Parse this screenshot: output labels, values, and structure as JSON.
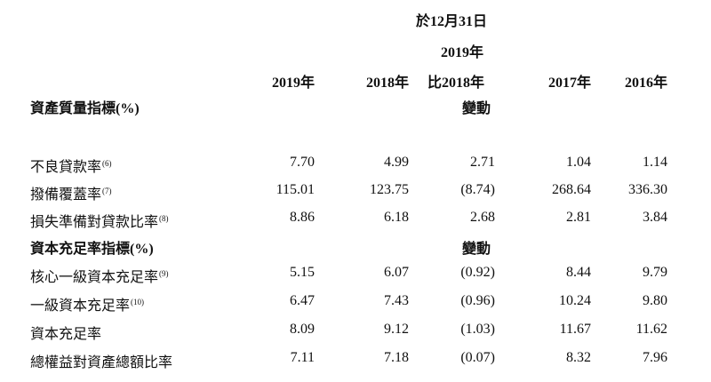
{
  "header": {
    "date_line": "於12月31日",
    "change_year": "2019年",
    "change_compare": "比2018年",
    "columns": [
      "2019年",
      "2018年",
      "",
      "2017年",
      "2016年"
    ]
  },
  "sections": [
    {
      "title": "資產質量指標(%)",
      "change_label": "變動",
      "rows": [
        {
          "label": "不良貸款率",
          "note": "(6)",
          "values": [
            "7.70",
            "4.99",
            "2.71",
            "1.04",
            "1.14"
          ]
        },
        {
          "label": "撥備覆蓋率",
          "note": "(7)",
          "values": [
            "115.01",
            "123.75",
            "(8.74)",
            "268.64",
            "336.30"
          ]
        },
        {
          "label": "損失準備對貸款比率",
          "note": "(8)",
          "values": [
            "8.86",
            "6.18",
            "2.68",
            "2.81",
            "3.84"
          ]
        }
      ]
    },
    {
      "title": "資本充足率指標(%)",
      "change_label": "變動",
      "rows": [
        {
          "label": "核心一級資本充足率",
          "note": "(9)",
          "values": [
            "5.15",
            "6.07",
            "(0.92)",
            "8.44",
            "9.79"
          ]
        },
        {
          "label": "一級資本充足率",
          "note": "(10)",
          "values": [
            "6.47",
            "7.43",
            "(0.96)",
            "10.24",
            "9.80"
          ]
        },
        {
          "label": "資本充足率",
          "note": "",
          "values": [
            "8.09",
            "9.12",
            "(1.03)",
            "11.67",
            "11.62"
          ]
        },
        {
          "label": "總權益對資產總額比率",
          "note": "",
          "values": [
            "7.11",
            "7.18",
            "(0.07)",
            "8.32",
            "7.96"
          ]
        }
      ]
    }
  ]
}
